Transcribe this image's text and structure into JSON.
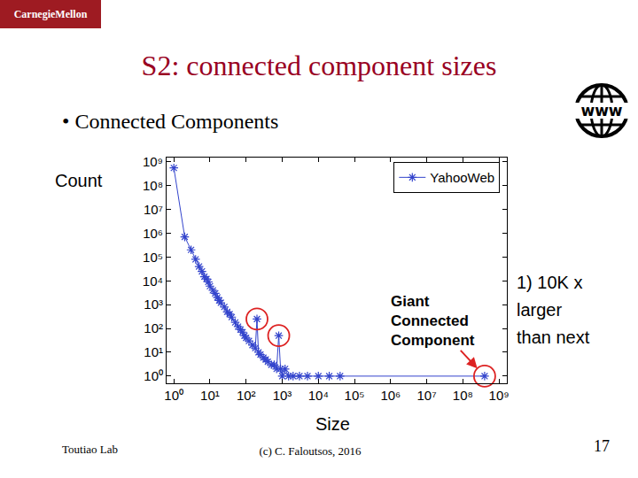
{
  "slide": {
    "logo": "CarnegieMellon",
    "title": "S2: connected component sizes",
    "bullet": "• Connected Components",
    "icon_text": "www",
    "note": [
      "1) 10K x",
      "larger",
      "than next"
    ],
    "footer_left": "Toutiao Lab",
    "footer_center": "(c) C. Faloutsos, 2016",
    "page_number": 17
  },
  "chart_data": {
    "type": "line",
    "x_label": "Size",
    "y_label": "Count",
    "log": true,
    "grid": false,
    "legend": "upper right",
    "xlim": [
      0.63,
      1650000000
    ],
    "ylim": [
      0.5,
      1500000000
    ],
    "xticks": [
      {
        "value": 1,
        "label": "10⁰"
      },
      {
        "value": 10,
        "label": "10¹"
      },
      {
        "value": 100,
        "label": "10²"
      },
      {
        "value": 1000,
        "label": "10³"
      },
      {
        "value": 10000,
        "label": "10⁴"
      },
      {
        "value": 100000,
        "label": "10⁵"
      },
      {
        "value": 1000000,
        "label": "10⁶"
      },
      {
        "value": 10000000,
        "label": "10⁷"
      },
      {
        "value": 100000000,
        "label": "10⁸"
      },
      {
        "value": 1000000000,
        "label": "10⁹"
      }
    ],
    "yticks": [
      {
        "value": 1,
        "label": "10⁰"
      },
      {
        "value": 10,
        "label": "10¹"
      },
      {
        "value": 100,
        "label": "10²"
      },
      {
        "value": 1000,
        "label": "10³"
      },
      {
        "value": 10000,
        "label": "10⁴"
      },
      {
        "value": 100000,
        "label": "10⁵"
      },
      {
        "value": 1000000,
        "label": "10⁶"
      },
      {
        "value": 10000000,
        "label": "10⁷"
      },
      {
        "value": 100000000,
        "label": "10⁸"
      },
      {
        "value": 1000000000,
        "label": "10⁹"
      }
    ],
    "series": [
      {
        "name": "YahooWeb",
        "color": "#3344cc",
        "marker": "asterisk",
        "line_style": "solid",
        "x": [
          1,
          2,
          3,
          4,
          5,
          6,
          7,
          8,
          9,
          10,
          12,
          14,
          16,
          18,
          20,
          25,
          30,
          35,
          40,
          50,
          60,
          70,
          80,
          90,
          100,
          120,
          150,
          180,
          200,
          220,
          250,
          300,
          350,
          400,
          500,
          600,
          700,
          800,
          900,
          1000,
          1200,
          1500,
          2000,
          3000,
          5000,
          10000,
          20000,
          40000,
          400000000
        ],
        "values": [
          550000000,
          700000,
          200000,
          80000,
          40000,
          25000,
          15000,
          12000,
          9000,
          6000,
          4000,
          3000,
          2000,
          1500,
          1200,
          800,
          500,
          400,
          300,
          180,
          120,
          90,
          70,
          50,
          40,
          30,
          20,
          15,
          250,
          10,
          8,
          6,
          5,
          4,
          3,
          3,
          2,
          50,
          2,
          1,
          2,
          1,
          1,
          1,
          1,
          1,
          1,
          1,
          1
        ]
      },
      {
        "color": "#dd2222",
        "marker": "circle-open",
        "line_style": "none",
        "x": [
          200,
          800,
          400000000
        ],
        "values": [
          250,
          50,
          1
        ]
      }
    ],
    "annotations": [
      {
        "text": "Giant\nConnected\nComponent",
        "x": 400000000,
        "y": 1
      }
    ]
  }
}
